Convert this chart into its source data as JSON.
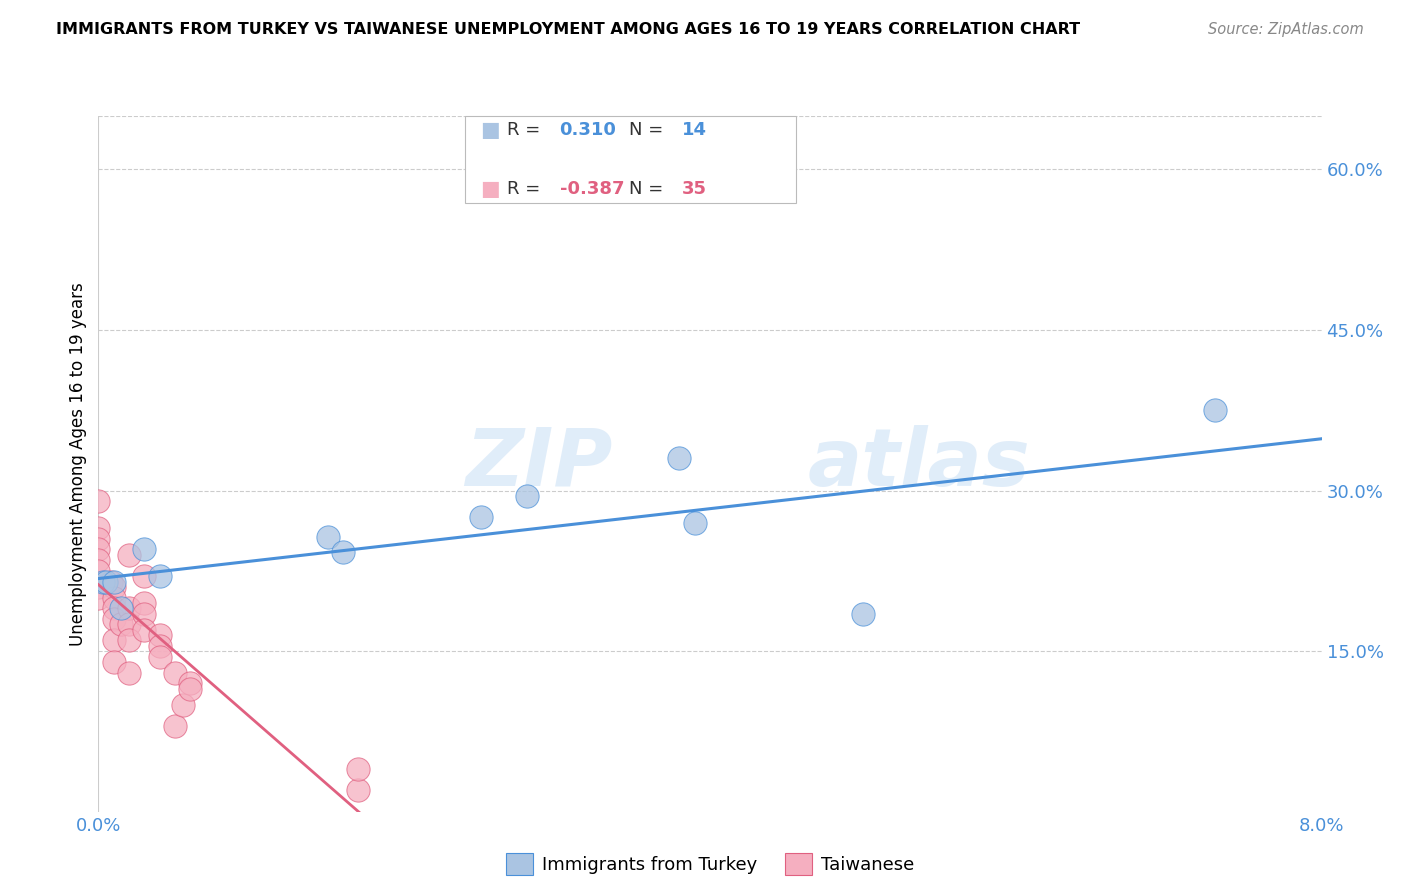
{
  "title": "IMMIGRANTS FROM TURKEY VS TAIWANESE UNEMPLOYMENT AMONG AGES 16 TO 19 YEARS CORRELATION CHART",
  "source": "Source: ZipAtlas.com",
  "ylabel": "Unemployment Among Ages 16 to 19 years",
  "right_yticks": [
    "60.0%",
    "45.0%",
    "30.0%",
    "15.0%"
  ],
  "right_ytick_vals": [
    0.6,
    0.45,
    0.3,
    0.15
  ],
  "xlim": [
    0.0,
    0.08
  ],
  "ylim": [
    0.0,
    0.65
  ],
  "watermark_zip": "ZIP",
  "watermark_atlas": "atlas",
  "turkey_r": "0.310",
  "turkey_n": "14",
  "taiwanese_r": "-0.387",
  "taiwanese_n": "35",
  "turkey_color": "#aac4e2",
  "taiwanese_color": "#f5afc0",
  "line_turkey_color": "#4a90d9",
  "line_taiwanese_color": "#e06080",
  "turkey_x": [
    0.0003,
    0.0005,
    0.001,
    0.0015,
    0.003,
    0.015,
    0.016,
    0.025,
    0.028,
    0.038,
    0.039,
    0.05,
    0.073,
    0.004
  ],
  "turkey_y": [
    0.215,
    0.215,
    0.215,
    0.19,
    0.245,
    0.257,
    0.243,
    0.275,
    0.295,
    0.33,
    0.27,
    0.185,
    0.375,
    0.22
  ],
  "taiwanese_x": [
    0.0,
    0.0,
    0.0,
    0.0,
    0.0,
    0.0,
    0.0,
    0.0,
    0.0008,
    0.001,
    0.001,
    0.001,
    0.001,
    0.001,
    0.001,
    0.0015,
    0.002,
    0.002,
    0.002,
    0.002,
    0.002,
    0.003,
    0.003,
    0.003,
    0.003,
    0.004,
    0.004,
    0.004,
    0.005,
    0.005,
    0.0055,
    0.006,
    0.006,
    0.017,
    0.017
  ],
  "taiwanese_y": [
    0.29,
    0.265,
    0.255,
    0.245,
    0.235,
    0.225,
    0.21,
    0.2,
    0.215,
    0.21,
    0.2,
    0.19,
    0.18,
    0.16,
    0.14,
    0.175,
    0.24,
    0.19,
    0.175,
    0.16,
    0.13,
    0.22,
    0.195,
    0.185,
    0.17,
    0.165,
    0.155,
    0.145,
    0.13,
    0.08,
    0.1,
    0.12,
    0.115,
    0.02,
    0.04
  ],
  "legend_items": [
    "Immigrants from Turkey",
    "Taiwanese"
  ],
  "legend_colors": [
    "#aac4e2",
    "#f5afc0"
  ],
  "grid_color": "#cccccc",
  "background_color": "#ffffff"
}
